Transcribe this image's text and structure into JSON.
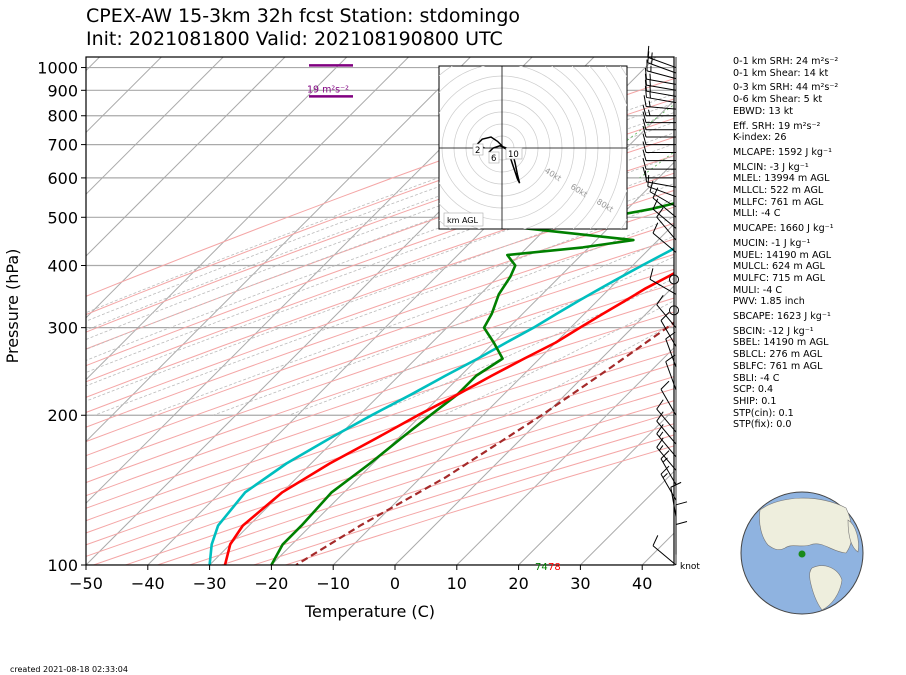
{
  "title_line1": "CPEX-AW 15-3km  32h fcst  Station: stdomingo",
  "title_line2": "Init: 2021081800  Valid: 202108190800 UTC",
  "created": "created 2021-08-18 02:33:04",
  "indices": [
    "0-1 km SRH: 24 m²s⁻²",
    "0-1 km Shear: 14 kt",
    "0-3 km SRH: 44 m²s⁻²",
    "0-6 km Shear: 5 kt",
    "EBWD: 13 kt",
    "Eff. SRH: 19 m²s⁻²",
    "K-index: 26",
    "MLCAPE: 1592 J kg⁻¹",
    "MLCIN: -3 J kg⁻¹",
    "MLEL: 13994 m AGL",
    "MLLCL: 522 m AGL",
    "MLLFC: 761 m AGL",
    "MLLI: -4 C",
    "MUCAPE: 1660 J kg⁻¹",
    "MUCIN: -1 J kg⁻¹",
    "MUEL: 14190 m AGL",
    "MULCL: 624 m AGL",
    "MULFC: 715 m AGL",
    "MULI: -4 C",
    "PWV: 1.85 inch",
    "SBCAPE: 1623 J kg⁻¹",
    "SBCIN: -12 J kg⁻¹",
    "SBEL: 14190 m AGL",
    "SBLCL: 276 m AGL",
    "SBLFC: 761 m AGL",
    "SBLI: -4 C",
    "SCP: 0.4",
    "SHIP: 0.1",
    "STP(cin): 0.1",
    "STP(fix): 0.0"
  ],
  "chart_data": {
    "type": "line",
    "subtype": "skew-T log-P",
    "xlabel": "Temperature (C)",
    "ylabel": "Pressure (hPa)",
    "xlim": [
      -50,
      45
    ],
    "x_ticks": [
      -50,
      -40,
      -30,
      -20,
      -10,
      0,
      10,
      20,
      30,
      40
    ],
    "ylim": [
      1050,
      100
    ],
    "y_ticks": [
      1000,
      900,
      800,
      700,
      600,
      500,
      400,
      300,
      200,
      100
    ],
    "y_scale": "log",
    "grid": true,
    "colors": {
      "temperature": "#ff0000",
      "dewpoint": "#008000",
      "wetbulb": "#00bfbf",
      "parcel": "#a52a2a",
      "srh": "#800080",
      "isotherm": "#aaaaaa",
      "dry_adiabat": "#f4a6a6",
      "moist_adiabat": "#bbbbbb",
      "mixing_ratio": "#66bb66"
    },
    "surface_labels": {
      "dewpoint": "74",
      "temperature": "78"
    },
    "srh_labels": [
      {
        "text": "19 m²s⁻²",
        "pressure": 875
      },
      {
        "pressure": 1010
      }
    ],
    "wind_unit_label": "knot",
    "series": [
      {
        "key": "temperature",
        "points": [
          [
            25.8,
            1010
          ],
          [
            25,
            990
          ],
          [
            23.5,
            960
          ],
          [
            21.5,
            920
          ],
          [
            19.5,
            880
          ],
          [
            17.5,
            840
          ],
          [
            16,
            800
          ],
          [
            15,
            760
          ],
          [
            14.5,
            720
          ],
          [
            14,
            700
          ],
          [
            13,
            680
          ],
          [
            12,
            660
          ],
          [
            11,
            640
          ],
          [
            10,
            620
          ],
          [
            9,
            600
          ],
          [
            8,
            580
          ],
          [
            7,
            560
          ],
          [
            5.5,
            540
          ],
          [
            4.5,
            520
          ],
          [
            4,
            500
          ],
          [
            3.5,
            480
          ],
          [
            3.5,
            460
          ],
          [
            2,
            440
          ],
          [
            0.5,
            420
          ],
          [
            -1,
            400
          ],
          [
            -2.5,
            380
          ],
          [
            -4.2,
            360
          ],
          [
            -5.5,
            340
          ],
          [
            -7,
            320
          ],
          [
            -8.5,
            300
          ],
          [
            -10,
            280
          ],
          [
            -12.5,
            260
          ],
          [
            -15,
            240
          ],
          [
            -17.5,
            220
          ],
          [
            -20.5,
            200
          ],
          [
            -23.5,
            180
          ],
          [
            -27,
            160
          ],
          [
            -30,
            140
          ],
          [
            -31,
            120
          ],
          [
            -30,
            110
          ],
          [
            -27.5,
            100
          ]
        ]
      },
      {
        "key": "dewpoint",
        "points": [
          [
            23.5,
            1010
          ],
          [
            23,
            990
          ],
          [
            22.5,
            960
          ],
          [
            20,
            920
          ],
          [
            17,
            880
          ],
          [
            14.5,
            840
          ],
          [
            12.5,
            800
          ],
          [
            10,
            760
          ],
          [
            5,
            720
          ],
          [
            0,
            700
          ],
          [
            0.5,
            680
          ],
          [
            1.5,
            660
          ],
          [
            0,
            640
          ],
          [
            -2,
            620
          ],
          [
            -5,
            600
          ],
          [
            -8,
            570
          ],
          [
            -12,
            540
          ],
          [
            -16,
            520
          ],
          [
            -22,
            500
          ],
          [
            -37,
            480
          ],
          [
            -14,
            450
          ],
          [
            -21,
            435
          ],
          [
            -32,
            420
          ],
          [
            -29,
            400
          ],
          [
            -28,
            380
          ],
          [
            -27,
            350
          ],
          [
            -25,
            320
          ],
          [
            -24,
            300
          ],
          [
            -20,
            280
          ],
          [
            -16,
            260
          ],
          [
            -17.5,
            240
          ],
          [
            -17.5,
            220
          ],
          [
            -18.5,
            200
          ],
          [
            -19.5,
            180
          ],
          [
            -20.5,
            160
          ],
          [
            -22,
            140
          ],
          [
            -21.5,
            120
          ],
          [
            -21.5,
            110
          ],
          [
            -20,
            100
          ]
        ]
      },
      {
        "key": "wetbulb",
        "points": [
          [
            24,
            1010
          ],
          [
            23.5,
            990
          ],
          [
            22.8,
            960
          ],
          [
            21,
            920
          ],
          [
            19,
            880
          ],
          [
            16.5,
            840
          ],
          [
            14,
            800
          ],
          [
            11.5,
            760
          ],
          [
            9,
            720
          ],
          [
            9,
            700
          ],
          [
            8.5,
            680
          ],
          [
            8,
            660
          ],
          [
            6.5,
            640
          ],
          [
            5,
            620
          ],
          [
            3.5,
            600
          ],
          [
            1.5,
            570
          ],
          [
            -1,
            540
          ],
          [
            -2.5,
            520
          ],
          [
            -3.5,
            500
          ],
          [
            -3,
            480
          ],
          [
            -3,
            460
          ],
          [
            -5.5,
            440
          ],
          [
            -7,
            420
          ],
          [
            -8.5,
            400
          ],
          [
            -10,
            380
          ],
          [
            -11.5,
            360
          ],
          [
            -13,
            340
          ],
          [
            -14.5,
            320
          ],
          [
            -16,
            300
          ],
          [
            -18,
            280
          ],
          [
            -20,
            260
          ],
          [
            -22.5,
            240
          ],
          [
            -25,
            220
          ],
          [
            -28,
            200
          ],
          [
            -31,
            180
          ],
          [
            -34,
            160
          ],
          [
            -36,
            140
          ],
          [
            -35,
            120
          ],
          [
            -33,
            110
          ],
          [
            -30,
            100
          ]
        ]
      },
      {
        "key": "parcel",
        "dashed": true,
        "points": [
          [
            25,
            1010
          ],
          [
            24.5,
            990
          ],
          [
            23.6,
            960
          ],
          [
            22.7,
            920
          ],
          [
            22,
            900
          ],
          [
            21.3,
            880
          ],
          [
            20.5,
            850
          ],
          [
            19.8,
            820
          ],
          [
            19,
            790
          ],
          [
            18.3,
            760
          ],
          [
            17.6,
            730
          ],
          [
            17,
            700
          ],
          [
            16,
            650
          ],
          [
            15,
            600
          ],
          [
            13.8,
            550
          ],
          [
            12.6,
            500
          ],
          [
            11.2,
            450
          ],
          [
            9.4,
            400
          ],
          [
            7.7,
            350
          ],
          [
            5.6,
            300
          ],
          [
            3,
            250
          ],
          [
            -0.5,
            200
          ],
          [
            -6,
            150
          ],
          [
            -12,
            120
          ],
          [
            -16,
            100
          ]
        ]
      }
    ],
    "hodograph": {
      "label": "km AGL",
      "ring_labels": [
        "40kt",
        "60kt",
        "80kt"
      ],
      "height_labels": [
        "2",
        "6",
        "10"
      ],
      "points": [
        [
          -6,
          -2
        ],
        [
          -4,
          0
        ],
        [
          -1,
          1
        ],
        [
          2,
          0
        ],
        [
          3,
          -2
        ],
        [
          4,
          -5
        ],
        [
          5,
          -8
        ],
        [
          6,
          -11
        ],
        [
          7,
          -14
        ],
        [
          8,
          -16
        ],
        [
          7,
          -12
        ],
        [
          6,
          -7
        ],
        [
          5,
          -3
        ],
        [
          3,
          -1
        ],
        [
          1,
          0
        ],
        [
          -2,
          3
        ],
        [
          -5,
          5
        ],
        [
          -9,
          4
        ],
        [
          -11,
          2
        ],
        [
          -10,
          1
        ],
        [
          -8,
          0
        ]
      ]
    },
    "wind_barbs": [
      {
        "p": 1000,
        "spd": 15,
        "dir": 110
      },
      {
        "p": 975,
        "spd": 15,
        "dir": 110
      },
      {
        "p": 950,
        "spd": 15,
        "dir": 105
      },
      {
        "p": 925,
        "spd": 15,
        "dir": 100
      },
      {
        "p": 900,
        "spd": 15,
        "dir": 100
      },
      {
        "p": 875,
        "spd": 15,
        "dir": 100
      },
      {
        "p": 850,
        "spd": 15,
        "dir": 100
      },
      {
        "p": 825,
        "spd": 15,
        "dir": 95
      },
      {
        "p": 800,
        "spd": 15,
        "dir": 90
      },
      {
        "p": 775,
        "spd": 10,
        "dir": 90
      },
      {
        "p": 750,
        "spd": 10,
        "dir": 90
      },
      {
        "p": 725,
        "spd": 10,
        "dir": 90
      },
      {
        "p": 700,
        "spd": 10,
        "dir": 90
      },
      {
        "p": 675,
        "spd": 10,
        "dir": 90
      },
      {
        "p": 650,
        "spd": 10,
        "dir": 90
      },
      {
        "p": 625,
        "spd": 10,
        "dir": 90
      },
      {
        "p": 600,
        "spd": 10,
        "dir": 90
      },
      {
        "p": 575,
        "spd": 10,
        "dir": 100
      },
      {
        "p": 550,
        "spd": 10,
        "dir": 110
      },
      {
        "p": 525,
        "spd": 10,
        "dir": 120
      },
      {
        "p": 500,
        "spd": 10,
        "dir": 130
      },
      {
        "p": 475,
        "spd": 10,
        "dir": 130
      },
      {
        "p": 450,
        "spd": 10,
        "dir": 140
      },
      {
        "p": 425,
        "spd": 10,
        "dir": 130
      },
      {
        "p": 375,
        "spd": 0,
        "dir": 0
      },
      {
        "p": 350,
        "spd": 10,
        "dir": 120
      },
      {
        "p": 325,
        "spd": 0,
        "dir": 0
      },
      {
        "p": 300,
        "spd": 10,
        "dir": 140
      },
      {
        "p": 275,
        "spd": 10,
        "dir": 150
      },
      {
        "p": 250,
        "spd": 10,
        "dir": 160
      },
      {
        "p": 225,
        "spd": 10,
        "dir": 160
      },
      {
        "p": 200,
        "spd": 10,
        "dir": 150
      },
      {
        "p": 185,
        "spd": 10,
        "dir": 140
      },
      {
        "p": 175,
        "spd": 10,
        "dir": 140
      },
      {
        "p": 165,
        "spd": 15,
        "dir": 140
      },
      {
        "p": 155,
        "spd": 15,
        "dir": 140
      },
      {
        "p": 145,
        "spd": 15,
        "dir": 150
      },
      {
        "p": 135,
        "spd": 15,
        "dir": 150
      },
      {
        "p": 125,
        "spd": 10,
        "dir": 170
      },
      {
        "p": 115,
        "spd": 10,
        "dir": 180
      },
      {
        "p": 105,
        "spd": 10,
        "dir": 180
      },
      {
        "p": 100,
        "spd": 10,
        "dir": 130
      }
    ]
  }
}
